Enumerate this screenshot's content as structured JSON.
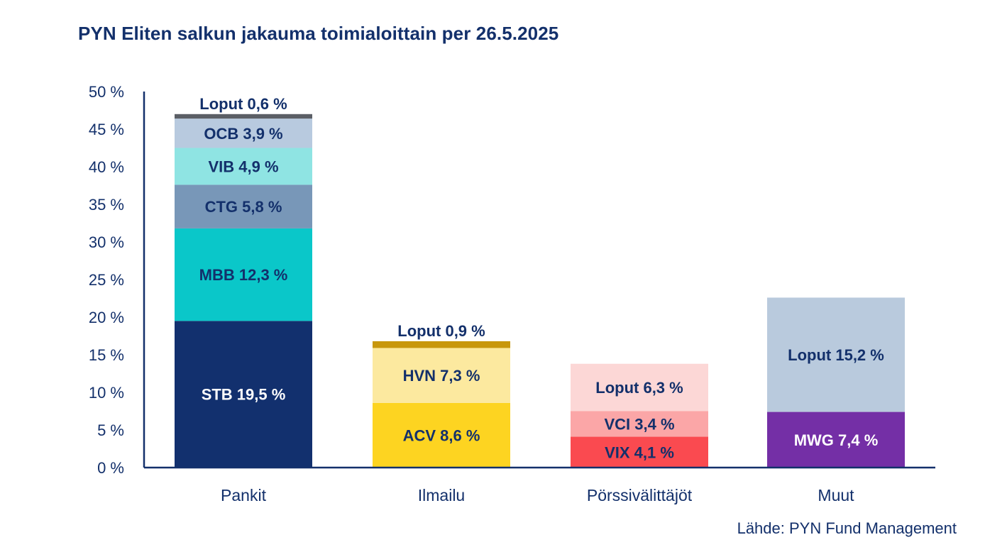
{
  "title": "PYN Eliten salkun jakauma toimialoittain per 26.5.2025",
  "source": "Lähde: PYN Fund Management",
  "chart_data": {
    "type": "bar",
    "stacked": true,
    "title": "PYN Eliten salkun jakauma toimialoittain per 26.5.2025",
    "xlabel": "",
    "ylabel": "",
    "ylim": [
      0,
      50
    ],
    "yticks": [
      0,
      5,
      10,
      15,
      20,
      25,
      30,
      35,
      40,
      45,
      50
    ],
    "ytick_labels": [
      "0 %",
      "5 %",
      "10 %",
      "15 %",
      "20 %",
      "25 %",
      "30 %",
      "35 %",
      "40 %",
      "45 %",
      "50 %"
    ],
    "grid": false,
    "legend": "none",
    "categories": [
      "Pankit",
      "Ilmailu",
      "Pörssivälittäjöt",
      "Muut"
    ],
    "stacks": [
      {
        "category": "Pankit",
        "segments": [
          {
            "name": "STB",
            "value": 19.5,
            "label": "STB 19,5 %",
            "color": "#12306e",
            "text_color": "#ffffff"
          },
          {
            "name": "MBB",
            "value": 12.3,
            "label": "MBB 12,3 %",
            "color": "#0ac7c9",
            "text_color": "#13306b"
          },
          {
            "name": "CTG",
            "value": 5.8,
            "label": "CTG 5,8 %",
            "color": "#7897b8",
            "text_color": "#13306b"
          },
          {
            "name": "VIB",
            "value": 4.9,
            "label": "VIB 4,9 %",
            "color": "#8fe4e3",
            "text_color": "#13306b"
          },
          {
            "name": "OCB",
            "value": 3.9,
            "label": "OCB 3,9 %",
            "color": "#b8cadf",
            "text_color": "#13306b"
          },
          {
            "name": "Loput",
            "value": 0.6,
            "label": "Loput 0,6 %",
            "color": "#5b5f66",
            "text_color": "#13306b",
            "label_above": true
          }
        ]
      },
      {
        "category": "Ilmailu",
        "segments": [
          {
            "name": "ACV",
            "value": 8.6,
            "label": "ACV 8,6 %",
            "color": "#fdd421",
            "text_color": "#13306b"
          },
          {
            "name": "HVN",
            "value": 7.3,
            "label": "HVN 7,3 %",
            "color": "#fce99f",
            "text_color": "#13306b"
          },
          {
            "name": "Loput",
            "value": 0.9,
            "label": "Loput 0,9 %",
            "color": "#c8970c",
            "text_color": "#13306b",
            "label_above": true
          }
        ]
      },
      {
        "category": "Pörssivälittäjöt",
        "segments": [
          {
            "name": "VIX",
            "value": 4.1,
            "label": "VIX 4,1 %",
            "color": "#fa4a50",
            "text_color": "#13306b"
          },
          {
            "name": "VCI",
            "value": 3.4,
            "label": "VCI 3,4 %",
            "color": "#fba6a7",
            "text_color": "#13306b"
          },
          {
            "name": "Loput",
            "value": 6.3,
            "label": "Loput 6,3 %",
            "color": "#fcd7d6",
            "text_color": "#13306b"
          }
        ]
      },
      {
        "category": "Muut",
        "segments": [
          {
            "name": "MWG",
            "value": 7.4,
            "label": "MWG 7,4 %",
            "color": "#742fa6",
            "text_color": "#ffffff"
          },
          {
            "name": "Loput",
            "value": 15.2,
            "label": "Loput 15,2 %",
            "color": "#b9cadd",
            "text_color": "#13306b"
          }
        ]
      }
    ],
    "axis_color": "#13306b"
  }
}
